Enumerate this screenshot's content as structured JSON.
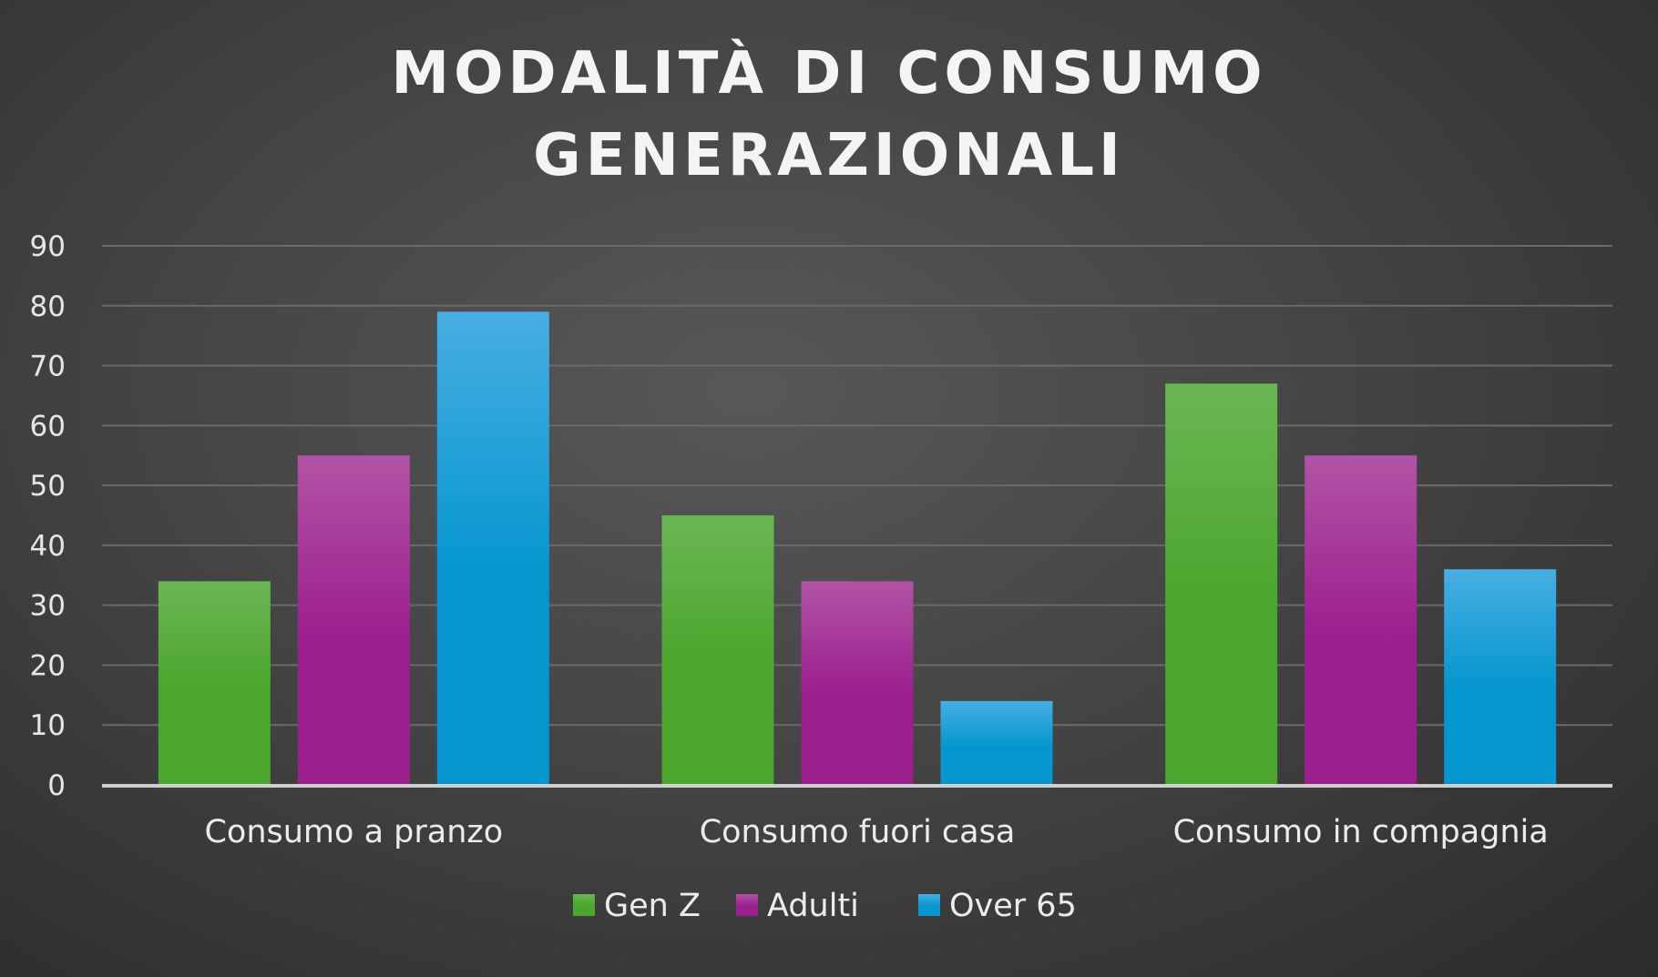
{
  "chart_data": {
    "type": "bar",
    "title_lines": [
      "MODALITÀ DI CONSUMO",
      "GENERAZIONALI"
    ],
    "categories": [
      "Consumo a pranzo",
      "Consumo fuori casa",
      "Consumo in compagnia"
    ],
    "series": [
      {
        "name": "Gen Z",
        "values": [
          34,
          45,
          67
        ],
        "color": "#4aa62c",
        "color_top": "#6ab654"
      },
      {
        "name": "Adulti",
        "values": [
          55,
          34,
          55
        ],
        "color": "#9c1f8e",
        "color_top": "#b253a6"
      },
      {
        "name": "Over 65",
        "values": [
          79,
          14,
          36
        ],
        "color": "#0596cf",
        "color_top": "#47aee2"
      }
    ],
    "ylim": [
      0,
      90
    ],
    "yticks": [
      "0",
      "10",
      "20",
      "30",
      "40",
      "50",
      "60",
      "70",
      "80",
      "90"
    ],
    "grid": true,
    "legend": "bottom"
  }
}
